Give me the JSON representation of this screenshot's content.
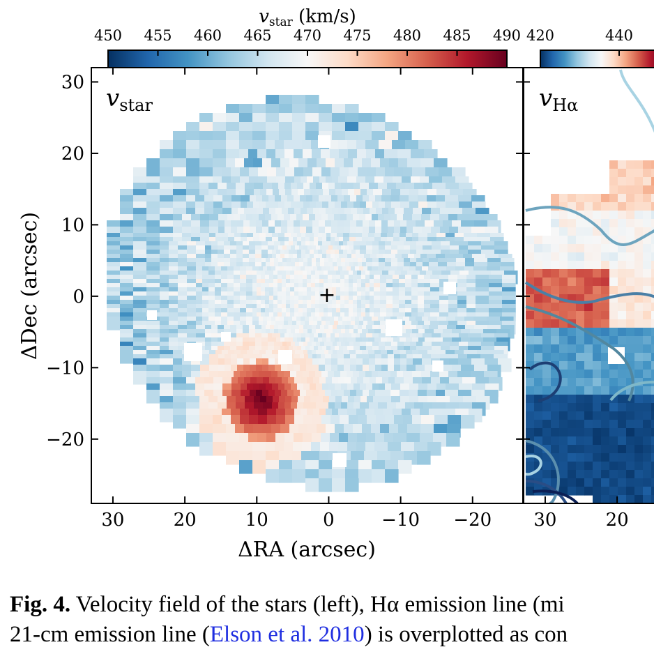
{
  "chart_data": [
    {
      "type": "heatmap",
      "panel_label": "v_star",
      "colorbar": {
        "label": "v_star (km/s)",
        "ticks": [
          450,
          455,
          460,
          465,
          470,
          475,
          480,
          485,
          490
        ],
        "range": [
          450,
          490
        ],
        "cmap": "RdBu_r"
      },
      "xlabel": "ΔRA (arcsec)",
      "ylabel": "ΔDec (arcsec)",
      "xlim": [
        33,
        -27
      ],
      "ylim": [
        -29,
        32
      ],
      "xticks": [
        30,
        20,
        10,
        0,
        -10,
        -20
      ],
      "yticks": [
        30,
        20,
        10,
        0,
        -10,
        -20
      ],
      "center_marker": [
        0,
        0
      ],
      "field_extent": {
        "ra_min": -27,
        "ra_max": 32.5,
        "dec_min": -28.5,
        "dec_max": 30
      },
      "velocity_structure": {
        "systemic": 468,
        "hotspot": {
          "ra": 10,
          "dec": -14,
          "peak": 490
        }
      }
    },
    {
      "type": "heatmap",
      "panel_label": "v_Hα",
      "colorbar": {
        "first_ticks": [
          420,
          440
        ],
        "cmap": "RdBu_r"
      },
      "xticks": [
        30,
        20
      ],
      "overlay": "contours"
    }
  ],
  "tick_labels": {
    "cbar1": [
      "450",
      "455",
      "460",
      "465",
      "470",
      "475",
      "480",
      "485",
      "490"
    ],
    "cbar2": [
      "420",
      "440"
    ],
    "y": [
      "30",
      "20",
      "10",
      "0",
      "−10",
      "−20"
    ],
    "x1": [
      "30",
      "20",
      "10",
      "0",
      "−10",
      "−20"
    ],
    "x2": [
      "30",
      "20"
    ]
  },
  "labels": {
    "cbar_title_sym": "v",
    "cbar_title_sub": "star",
    "cbar_title_unit": " (km/s)",
    "panel1_sym": "v",
    "panel1_sub": "star",
    "panel2_sym": "v",
    "panel2_sub": "Hα",
    "xlabel": "ΔRA (arcsec)",
    "ylabel": "ΔDec (arcsec)"
  },
  "caption": {
    "label": "Fig. 4.",
    "line1": " Velocity field of the stars (left), Hα emission line (mi",
    "line2_pre": "21-cm emission line (",
    "citation": "Elson et al. 2010",
    "line2_post": ") is overplotted as con"
  },
  "colors": {
    "deep_red": "#67001f",
    "red": "#d6604d",
    "light_red": "#f4a582",
    "white": "#f7f7f7",
    "light_blue": "#92c5de",
    "blue": "#4393c3",
    "deep_blue": "#053061",
    "citation": "#1f2ee0"
  }
}
